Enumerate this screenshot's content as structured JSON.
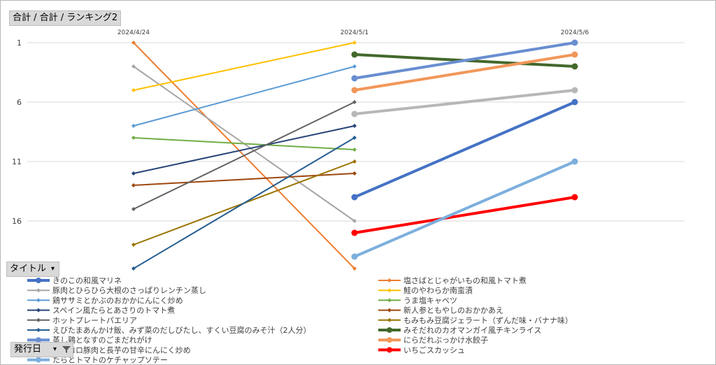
{
  "field_buttons": {
    "values_field": "合計 / 合計 / ランキング2",
    "legend_field": "タイトル",
    "legend_dropdown": "▾",
    "axis_field": "発行日",
    "axis_dropdown": "▾"
  },
  "chart_data": {
    "type": "line",
    "categories": [
      "2024/4/24",
      "2024/5/1",
      "2024/5/6"
    ],
    "y_axis": {
      "reversed": true,
      "min": 1,
      "max": 20,
      "ticks": [
        1,
        6,
        11,
        16
      ],
      "gridlines": true
    },
    "legend_position": "bottom",
    "series": [
      {
        "name": "きのこの和風マリネ",
        "color": "#4472c4",
        "values": [
          null,
          14,
          6
        ],
        "weight": "thick"
      },
      {
        "name": "塩さばとじゃがいもの和風トマト煮",
        "color": "#ed7d31",
        "values": [
          1,
          20,
          null
        ],
        "weight": "thin"
      },
      {
        "name": "豚肉とひらひら大根のさっぱりレンチン蒸し",
        "color": "#a5a5a5",
        "values": [
          3,
          16,
          null
        ],
        "weight": "thin"
      },
      {
        "name": "鮭のやわらか南蛮漬",
        "color": "#ffc000",
        "values": [
          5,
          1,
          null
        ],
        "weight": "thin"
      },
      {
        "name": "鶏ササミとかぶのおかかにんにく炒め",
        "color": "#5b9bd5",
        "values": [
          8,
          3,
          null
        ],
        "weight": "thin"
      },
      {
        "name": "うま塩キャベツ",
        "color": "#70ad47",
        "values": [
          9,
          10,
          null
        ],
        "weight": "thin"
      },
      {
        "name": "スペイン風たらとあさりのトマト煮",
        "color": "#264478",
        "values": [
          12,
          8,
          null
        ],
        "weight": "thin"
      },
      {
        "name": "新人参ともやしのおかかあえ",
        "color": "#9e480e",
        "values": [
          13,
          12,
          null
        ],
        "weight": "thin"
      },
      {
        "name": "ホットプレートパエリア",
        "color": "#636363",
        "values": [
          15,
          6,
          null
        ],
        "weight": "thin"
      },
      {
        "name": "もみもみ豆腐ジェラート（ずんだ味・バナナ味）",
        "color": "#997300",
        "values": [
          18,
          11,
          null
        ],
        "weight": "thin"
      },
      {
        "name": "えびたまあんかけ飯、みず菜のだしびたし、すくい豆腐のみそ汁（2人分）",
        "color": "#255e91",
        "values": [
          20,
          9,
          null
        ],
        "weight": "thin"
      },
      {
        "name": "みそだれのカオマンガイ風チキンライス",
        "color": "#43682b",
        "values": [
          null,
          2,
          3
        ],
        "weight": "thick"
      },
      {
        "name": "蒸し鶏となすのごまだれがけ",
        "color": "#698ed0",
        "values": [
          null,
          4,
          1
        ],
        "weight": "thick"
      },
      {
        "name": "にらだれぶっかけ水餃子",
        "color": "#f1975a",
        "values": [
          null,
          5,
          2
        ],
        "weight": "thick"
      },
      {
        "name": "コロコロ豚肉と長芋の甘辛にんにく炒め",
        "color": "#b7b7b7",
        "values": [
          null,
          7,
          5
        ],
        "weight": "thick"
      },
      {
        "name": "いちごスカッシュ",
        "color": "#ff0000",
        "values": [
          null,
          17,
          14
        ],
        "weight": "thick"
      },
      {
        "name": "たらとトマトのケチャップソテー",
        "color": "#7cafdd",
        "values": [
          null,
          19,
          11
        ],
        "weight": "thick"
      }
    ]
  }
}
